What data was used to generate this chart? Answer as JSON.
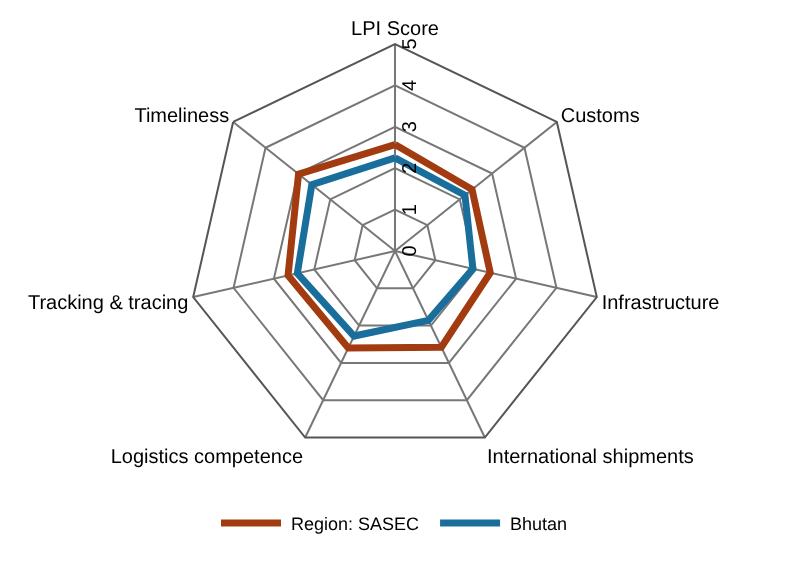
{
  "chart_data": {
    "type": "radar",
    "categories": [
      "LPI Score",
      "Customs",
      "Infrastructure",
      "International shipments",
      "Logistics competence",
      "Tracking & tracing",
      "Timeliness"
    ],
    "series": [
      {
        "name": "Region: SASEC",
        "color": "#a23c10",
        "values": [
          2.57,
          2.38,
          2.36,
          2.58,
          2.6,
          2.65,
          2.98
        ]
      },
      {
        "name": "Bhutan",
        "color": "#1a6e9c",
        "values": [
          2.25,
          2.16,
          1.93,
          1.86,
          2.28,
          2.42,
          2.57
        ]
      }
    ],
    "ylim": [
      0,
      5
    ],
    "yticks": [
      0,
      1,
      2,
      3,
      4,
      5
    ],
    "grid": true,
    "legend": "bottom",
    "marker": "none",
    "line_style": "solid"
  }
}
